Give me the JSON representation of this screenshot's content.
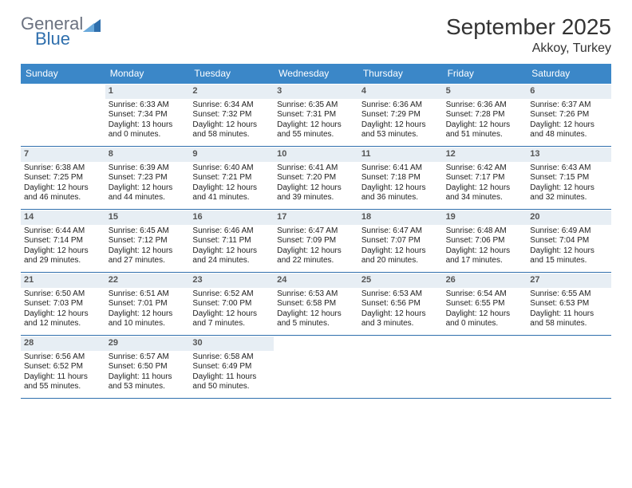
{
  "logo": {
    "general": "General",
    "blue": "Blue"
  },
  "title": "September 2025",
  "location": "Akkoy, Turkey",
  "colors": {
    "header_bg": "#3b87c8",
    "header_text": "#ffffff",
    "daynum_bg": "#e7eef4",
    "daynum_text": "#555555",
    "row_border": "#2f6fad",
    "body_text": "#222222",
    "logo_gray": "#6b7280",
    "logo_blue": "#2f6fad",
    "background": "#ffffff"
  },
  "typography": {
    "title_fontsize": 28,
    "location_fontsize": 16,
    "dow_fontsize": 12,
    "daynum_fontsize": 11,
    "body_fontsize": 10,
    "font_family": "Arial"
  },
  "days_of_week": [
    "Sunday",
    "Monday",
    "Tuesday",
    "Wednesday",
    "Thursday",
    "Friday",
    "Saturday"
  ],
  "weeks": [
    [
      null,
      {
        "n": "1",
        "sr": "Sunrise: 6:33 AM",
        "ss": "Sunset: 7:34 PM",
        "dl": "Daylight: 13 hours and 0 minutes."
      },
      {
        "n": "2",
        "sr": "Sunrise: 6:34 AM",
        "ss": "Sunset: 7:32 PM",
        "dl": "Daylight: 12 hours and 58 minutes."
      },
      {
        "n": "3",
        "sr": "Sunrise: 6:35 AM",
        "ss": "Sunset: 7:31 PM",
        "dl": "Daylight: 12 hours and 55 minutes."
      },
      {
        "n": "4",
        "sr": "Sunrise: 6:36 AM",
        "ss": "Sunset: 7:29 PM",
        "dl": "Daylight: 12 hours and 53 minutes."
      },
      {
        "n": "5",
        "sr": "Sunrise: 6:36 AM",
        "ss": "Sunset: 7:28 PM",
        "dl": "Daylight: 12 hours and 51 minutes."
      },
      {
        "n": "6",
        "sr": "Sunrise: 6:37 AM",
        "ss": "Sunset: 7:26 PM",
        "dl": "Daylight: 12 hours and 48 minutes."
      }
    ],
    [
      {
        "n": "7",
        "sr": "Sunrise: 6:38 AM",
        "ss": "Sunset: 7:25 PM",
        "dl": "Daylight: 12 hours and 46 minutes."
      },
      {
        "n": "8",
        "sr": "Sunrise: 6:39 AM",
        "ss": "Sunset: 7:23 PM",
        "dl": "Daylight: 12 hours and 44 minutes."
      },
      {
        "n": "9",
        "sr": "Sunrise: 6:40 AM",
        "ss": "Sunset: 7:21 PM",
        "dl": "Daylight: 12 hours and 41 minutes."
      },
      {
        "n": "10",
        "sr": "Sunrise: 6:41 AM",
        "ss": "Sunset: 7:20 PM",
        "dl": "Daylight: 12 hours and 39 minutes."
      },
      {
        "n": "11",
        "sr": "Sunrise: 6:41 AM",
        "ss": "Sunset: 7:18 PM",
        "dl": "Daylight: 12 hours and 36 minutes."
      },
      {
        "n": "12",
        "sr": "Sunrise: 6:42 AM",
        "ss": "Sunset: 7:17 PM",
        "dl": "Daylight: 12 hours and 34 minutes."
      },
      {
        "n": "13",
        "sr": "Sunrise: 6:43 AM",
        "ss": "Sunset: 7:15 PM",
        "dl": "Daylight: 12 hours and 32 minutes."
      }
    ],
    [
      {
        "n": "14",
        "sr": "Sunrise: 6:44 AM",
        "ss": "Sunset: 7:14 PM",
        "dl": "Daylight: 12 hours and 29 minutes."
      },
      {
        "n": "15",
        "sr": "Sunrise: 6:45 AM",
        "ss": "Sunset: 7:12 PM",
        "dl": "Daylight: 12 hours and 27 minutes."
      },
      {
        "n": "16",
        "sr": "Sunrise: 6:46 AM",
        "ss": "Sunset: 7:11 PM",
        "dl": "Daylight: 12 hours and 24 minutes."
      },
      {
        "n": "17",
        "sr": "Sunrise: 6:47 AM",
        "ss": "Sunset: 7:09 PM",
        "dl": "Daylight: 12 hours and 22 minutes."
      },
      {
        "n": "18",
        "sr": "Sunrise: 6:47 AM",
        "ss": "Sunset: 7:07 PM",
        "dl": "Daylight: 12 hours and 20 minutes."
      },
      {
        "n": "19",
        "sr": "Sunrise: 6:48 AM",
        "ss": "Sunset: 7:06 PM",
        "dl": "Daylight: 12 hours and 17 minutes."
      },
      {
        "n": "20",
        "sr": "Sunrise: 6:49 AM",
        "ss": "Sunset: 7:04 PM",
        "dl": "Daylight: 12 hours and 15 minutes."
      }
    ],
    [
      {
        "n": "21",
        "sr": "Sunrise: 6:50 AM",
        "ss": "Sunset: 7:03 PM",
        "dl": "Daylight: 12 hours and 12 minutes."
      },
      {
        "n": "22",
        "sr": "Sunrise: 6:51 AM",
        "ss": "Sunset: 7:01 PM",
        "dl": "Daylight: 12 hours and 10 minutes."
      },
      {
        "n": "23",
        "sr": "Sunrise: 6:52 AM",
        "ss": "Sunset: 7:00 PM",
        "dl": "Daylight: 12 hours and 7 minutes."
      },
      {
        "n": "24",
        "sr": "Sunrise: 6:53 AM",
        "ss": "Sunset: 6:58 PM",
        "dl": "Daylight: 12 hours and 5 minutes."
      },
      {
        "n": "25",
        "sr": "Sunrise: 6:53 AM",
        "ss": "Sunset: 6:56 PM",
        "dl": "Daylight: 12 hours and 3 minutes."
      },
      {
        "n": "26",
        "sr": "Sunrise: 6:54 AM",
        "ss": "Sunset: 6:55 PM",
        "dl": "Daylight: 12 hours and 0 minutes."
      },
      {
        "n": "27",
        "sr": "Sunrise: 6:55 AM",
        "ss": "Sunset: 6:53 PM",
        "dl": "Daylight: 11 hours and 58 minutes."
      }
    ],
    [
      {
        "n": "28",
        "sr": "Sunrise: 6:56 AM",
        "ss": "Sunset: 6:52 PM",
        "dl": "Daylight: 11 hours and 55 minutes."
      },
      {
        "n": "29",
        "sr": "Sunrise: 6:57 AM",
        "ss": "Sunset: 6:50 PM",
        "dl": "Daylight: 11 hours and 53 minutes."
      },
      {
        "n": "30",
        "sr": "Sunrise: 6:58 AM",
        "ss": "Sunset: 6:49 PM",
        "dl": "Daylight: 11 hours and 50 minutes."
      },
      null,
      null,
      null,
      null
    ]
  ]
}
